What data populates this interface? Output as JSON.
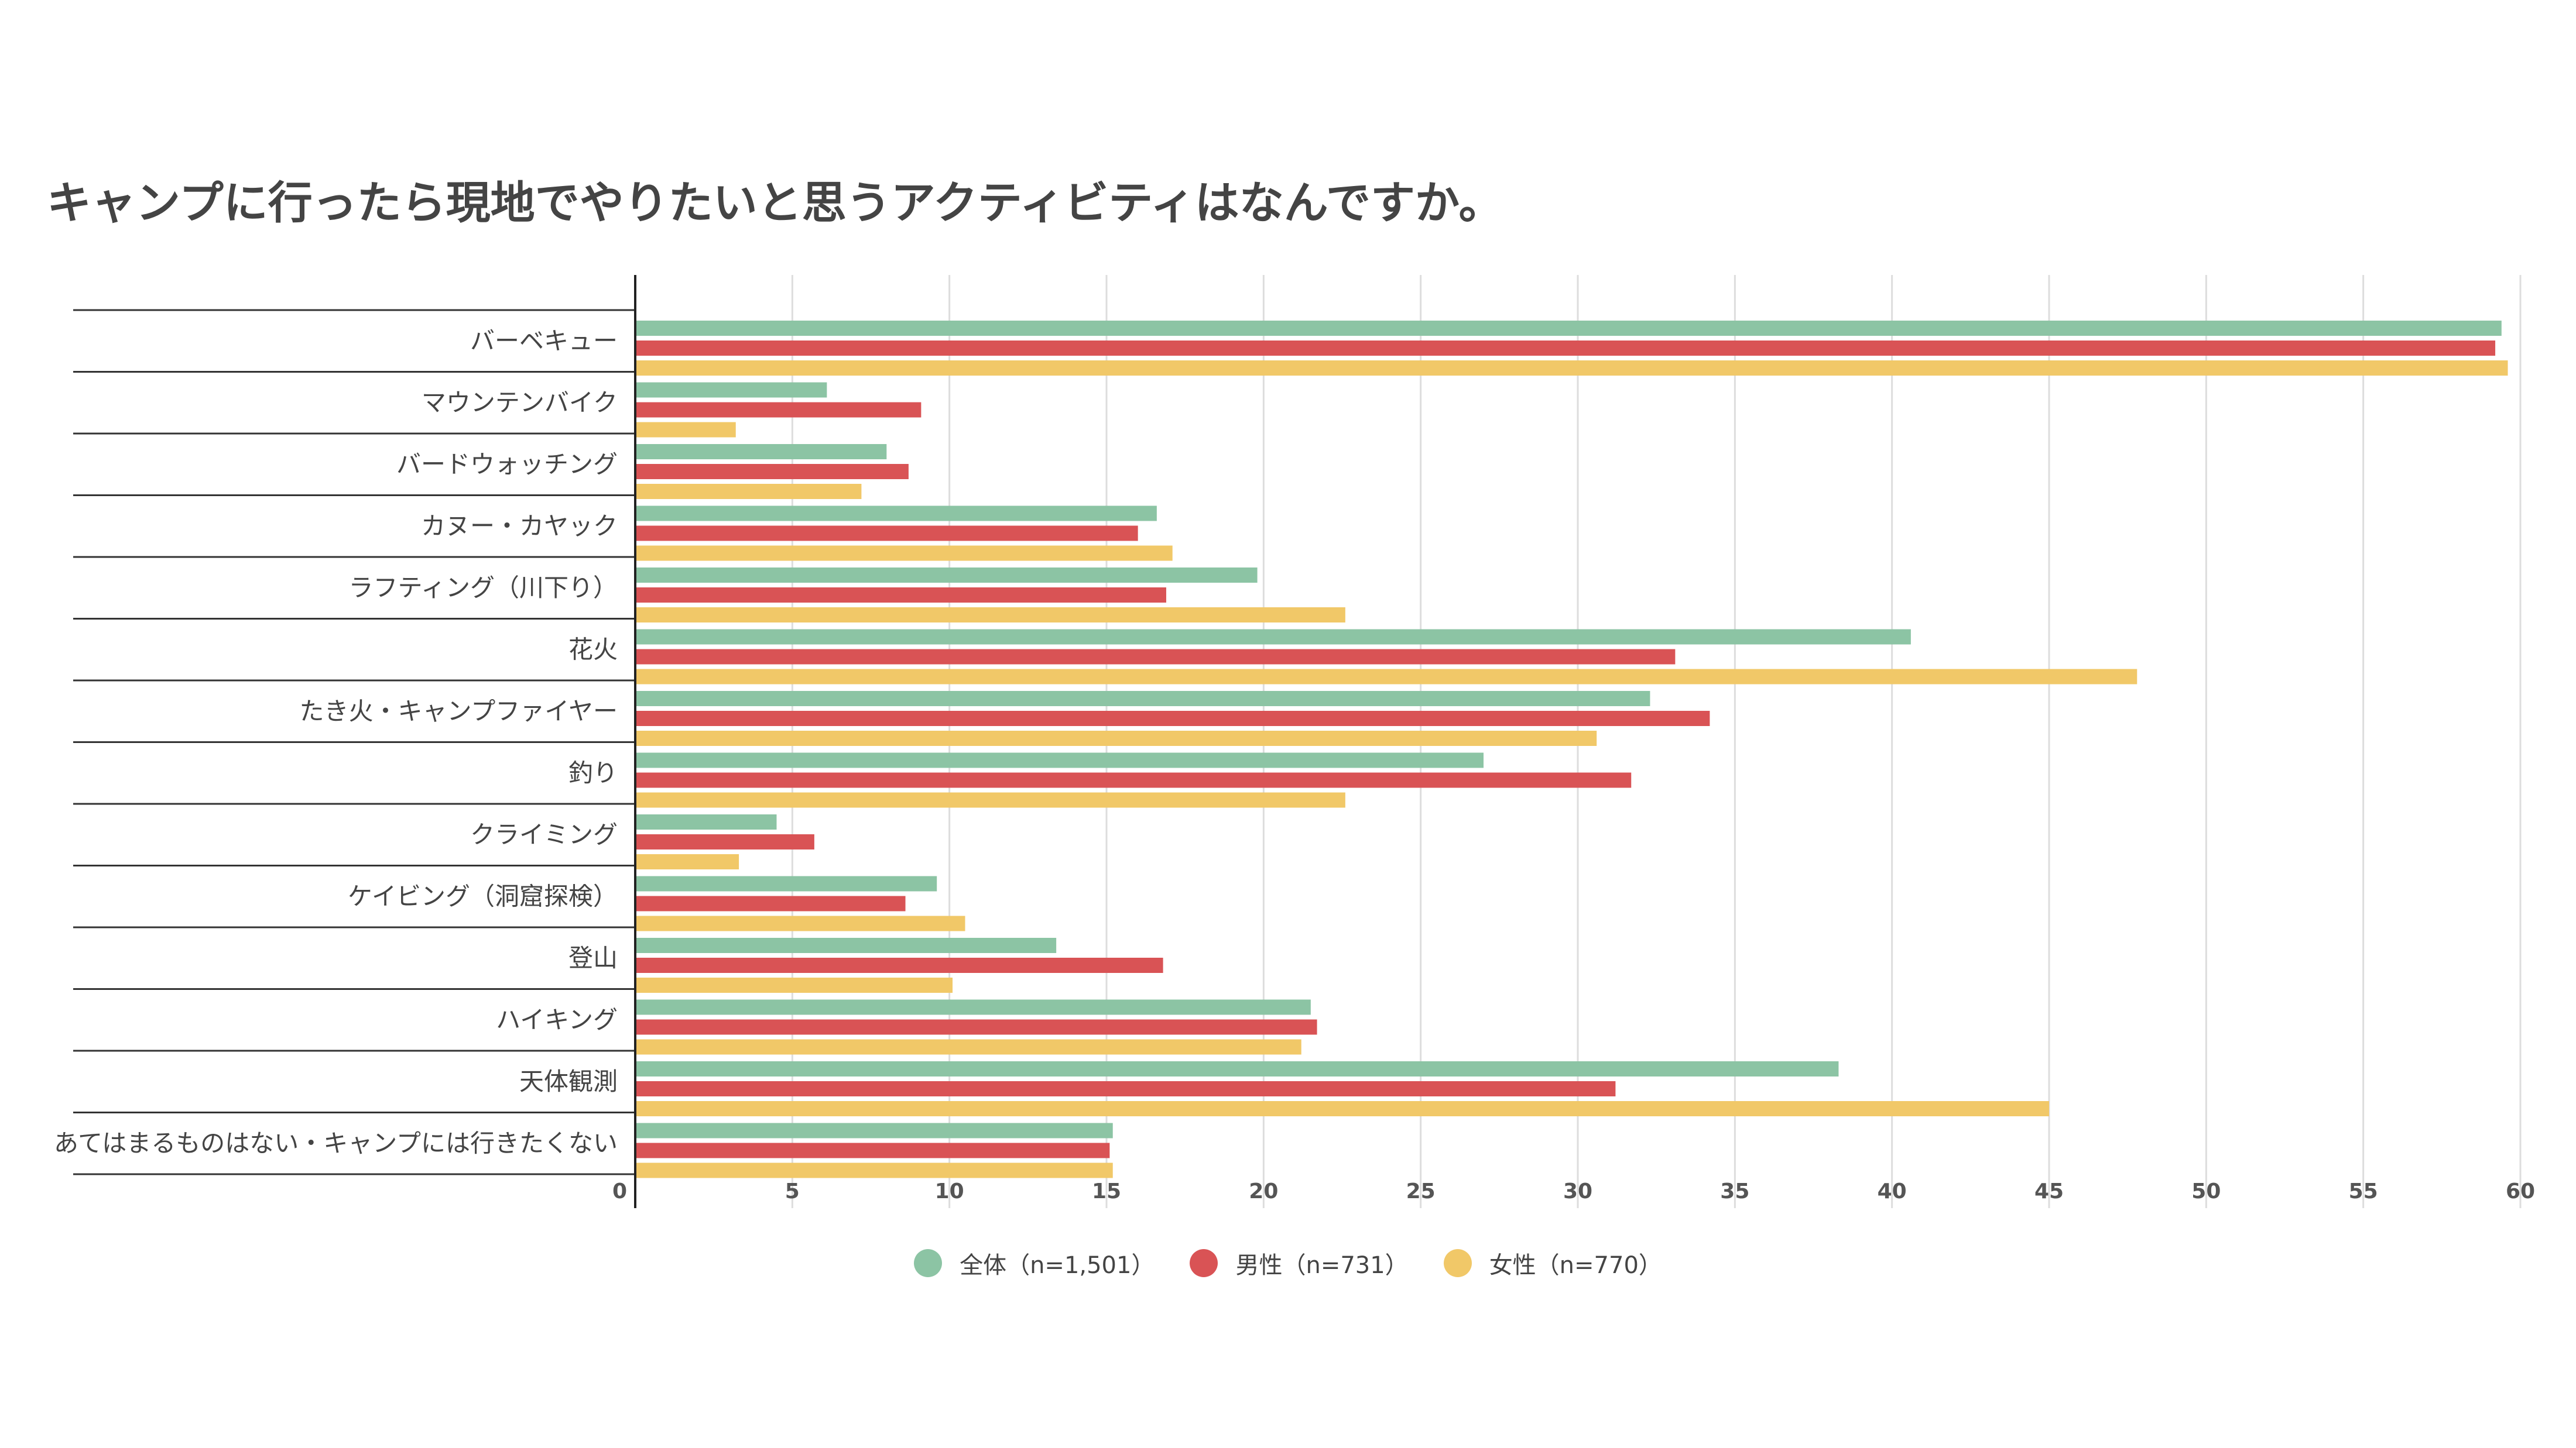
{
  "chart_data": {
    "type": "bar",
    "orientation": "horizontal",
    "title": "キャンプに行ったら現地でやりたいと思うアクティビティはなんですか。",
    "categories": [
      "バーベキュー",
      "マウンテンバイク",
      "バードウォッチング",
      "カヌー・カヤック",
      "ラフティング（川下り）",
      "花火",
      "たき火・キャンプファイヤー",
      "釣り",
      "クライミング",
      "ケイビング（洞窟探検）",
      "登山",
      "ハイキング",
      "天体観測",
      "あてはまるものはない・キャンプには行きたくない"
    ],
    "series": [
      {
        "name": "全体（n=1,501）",
        "color": "#8cc4a4",
        "values": [
          59.4,
          6.1,
          8.0,
          16.6,
          19.8,
          40.6,
          32.3,
          27.0,
          4.5,
          9.6,
          13.4,
          21.5,
          38.3,
          15.2
        ]
      },
      {
        "name": "男性（n=731）",
        "color": "#d95355",
        "values": [
          59.2,
          9.1,
          8.7,
          16.0,
          16.9,
          33.1,
          34.2,
          31.7,
          5.7,
          8.6,
          16.8,
          21.7,
          31.2,
          15.1
        ]
      },
      {
        "name": "女性（n=770）",
        "color": "#f1c868",
        "values": [
          59.6,
          3.2,
          7.2,
          17.1,
          22.6,
          47.8,
          30.6,
          22.6,
          3.3,
          10.5,
          10.1,
          21.2,
          45.0,
          15.2
        ]
      }
    ],
    "xlim": [
      0,
      60
    ],
    "xticks": [
      "0",
      "5",
      "10",
      "15",
      "20",
      "25",
      "30",
      "35",
      "40",
      "45",
      "50",
      "55",
      "60"
    ],
    "xlabel": "",
    "ylabel": "",
    "grid": true,
    "legend_position": "bottom"
  }
}
